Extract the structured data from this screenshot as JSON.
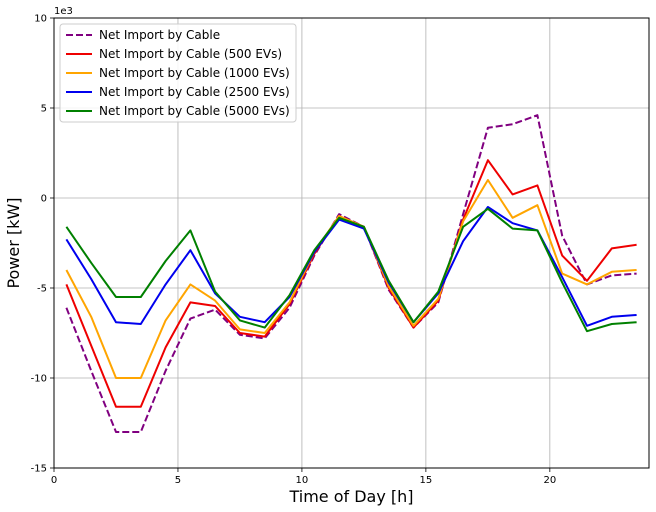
{
  "chart_data": {
    "type": "line",
    "xlabel": "Time of Day [h]",
    "ylabel": "Power [kW]",
    "y_scale_note": "1e3",
    "xlim": [
      0,
      24
    ],
    "ylim": [
      -15,
      10
    ],
    "xticks": [
      0,
      5,
      10,
      15,
      20
    ],
    "yticks": [
      -15,
      -10,
      -5,
      0,
      5,
      10
    ],
    "grid": true,
    "legend_position": "top-left",
    "x": [
      0.5,
      1.5,
      2.5,
      3.5,
      4.5,
      5.5,
      6.5,
      7.5,
      8.5,
      9.5,
      10.5,
      11.5,
      12.5,
      13.5,
      14.5,
      15.5,
      16.5,
      17.5,
      18.5,
      19.5,
      20.5,
      21.5,
      22.5,
      23.5
    ],
    "series": [
      {
        "name": "Net Import by Cable",
        "color": "#800080",
        "dash": true,
        "values": [
          -6.1,
          -9.6,
          -13.0,
          -13.0,
          -9.6,
          -6.7,
          -6.2,
          -7.6,
          -7.8,
          -6.1,
          -3.2,
          -0.9,
          -1.6,
          -5.1,
          -7.2,
          -5.8,
          -0.9,
          3.9,
          4.1,
          4.6,
          -2.1,
          -4.8,
          -4.3,
          -4.2
        ]
      },
      {
        "name": "Net Import by Cable (500 EVs)",
        "color": "#ee0000",
        "dash": false,
        "values": [
          -4.8,
          -8.2,
          -11.6,
          -11.6,
          -8.3,
          -5.8,
          -6.0,
          -7.5,
          -7.7,
          -5.9,
          -3.1,
          -1.0,
          -1.6,
          -5.0,
          -7.2,
          -5.7,
          -1.2,
          2.1,
          0.2,
          0.7,
          -3.2,
          -4.6,
          -2.8,
          -2.6
        ]
      },
      {
        "name": "Net Import by Cable (1000 EVs)",
        "color": "#ffa500",
        "dash": false,
        "values": [
          -4.0,
          -6.6,
          -10.0,
          -10.0,
          -6.8,
          -4.8,
          -5.7,
          -7.3,
          -7.5,
          -5.8,
          -3.0,
          -1.0,
          -1.6,
          -4.9,
          -7.1,
          -5.6,
          -1.3,
          1.0,
          -1.1,
          -0.4,
          -4.2,
          -4.8,
          -4.1,
          -4.0
        ]
      },
      {
        "name": "Net Import by Cable (2500 EVs)",
        "color": "#0000ee",
        "dash": false,
        "values": [
          -2.3,
          -4.5,
          -6.9,
          -7.0,
          -4.8,
          -2.9,
          -5.3,
          -6.6,
          -6.9,
          -5.5,
          -3.0,
          -1.2,
          -1.7,
          -4.7,
          -6.9,
          -5.3,
          -2.4,
          -0.5,
          -1.4,
          -1.8,
          -4.4,
          -7.1,
          -6.6,
          -6.5
        ]
      },
      {
        "name": "Net Import by Cable (5000 EVs)",
        "color": "#008000",
        "dash": false,
        "values": [
          -1.6,
          -3.6,
          -5.5,
          -5.5,
          -3.5,
          -1.8,
          -5.2,
          -6.8,
          -7.2,
          -5.4,
          -2.9,
          -1.1,
          -1.6,
          -4.6,
          -6.9,
          -5.2,
          -1.6,
          -0.6,
          -1.7,
          -1.8,
          -4.7,
          -7.4,
          -7.0,
          -6.9
        ]
      }
    ]
  }
}
